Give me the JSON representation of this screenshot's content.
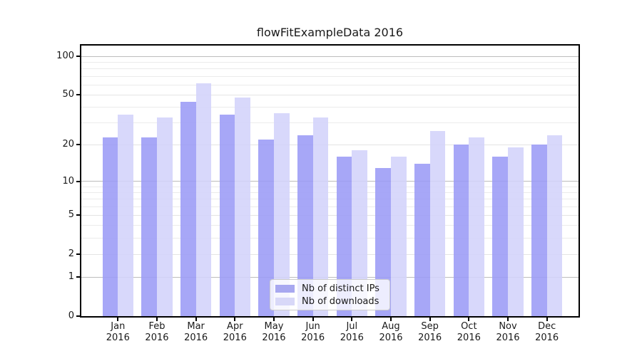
{
  "title": "flowFitExampleData 2016",
  "chart_data": {
    "type": "bar",
    "title": "flowFitExampleData 2016",
    "categories": [
      "Jan",
      "Feb",
      "Mar",
      "Apr",
      "May",
      "Jun",
      "Jul",
      "Aug",
      "Sep",
      "Oct",
      "Nov",
      "Dec"
    ],
    "category_year": "2016",
    "series": [
      {
        "name": "Nb of distinct IPs",
        "color": "#a8a8f0",
        "values": [
          23,
          23,
          44,
          35,
          22,
          24,
          16,
          13,
          14,
          20,
          16,
          20
        ]
      },
      {
        "name": "Nb of downloads",
        "color": "#d8d8f8",
        "values": [
          35,
          33,
          62,
          48,
          36,
          33,
          18,
          16,
          26,
          23,
          19,
          24
        ]
      }
    ],
    "yscale": "log1p",
    "ylim": [
      0,
      120
    ],
    "y_ticks": [
      100,
      50,
      20,
      10,
      5,
      2,
      1,
      0
    ],
    "y_major_gridlines": [
      100,
      10,
      1
    ],
    "y_mid_gridlines": [
      50,
      20,
      5,
      2
    ],
    "y_minor_gridlines": [
      90,
      80,
      70,
      60,
      40,
      30,
      9,
      8,
      7,
      6,
      4,
      3
    ],
    "grid": "on",
    "legend_position": "lower center",
    "xlabel": "",
    "ylabel": ""
  },
  "legend": {
    "items": [
      "Nb of distinct IPs",
      "Nb of downloads"
    ]
  },
  "colors": {
    "bar_ips": "#9b9bf6",
    "bar_downloads": "#d3d3fa",
    "bar_opacity": 0.88,
    "swatch_ips": "#a8a8f0",
    "swatch_downloads": "#d8d8f8",
    "grid_major": "#bcbcbc",
    "grid_minor": "#ebebeb",
    "axis": "#000000",
    "text": "#1a1a1a",
    "legend_border": "#cccccc"
  }
}
